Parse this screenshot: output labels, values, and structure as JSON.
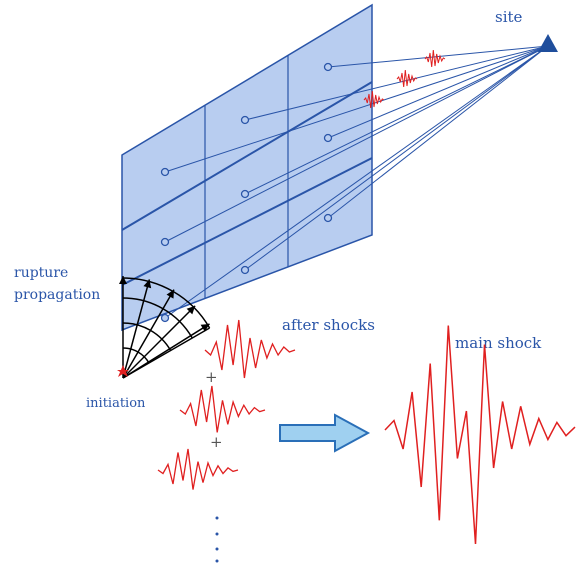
{
  "labels": {
    "site": "site",
    "rupture": "rupture",
    "propagation": "propagation",
    "after_shocks": "after shocks",
    "main_shock": "main shock",
    "initiation": "initiation",
    "plus_signs": [
      "+",
      "+"
    ]
  }
}
